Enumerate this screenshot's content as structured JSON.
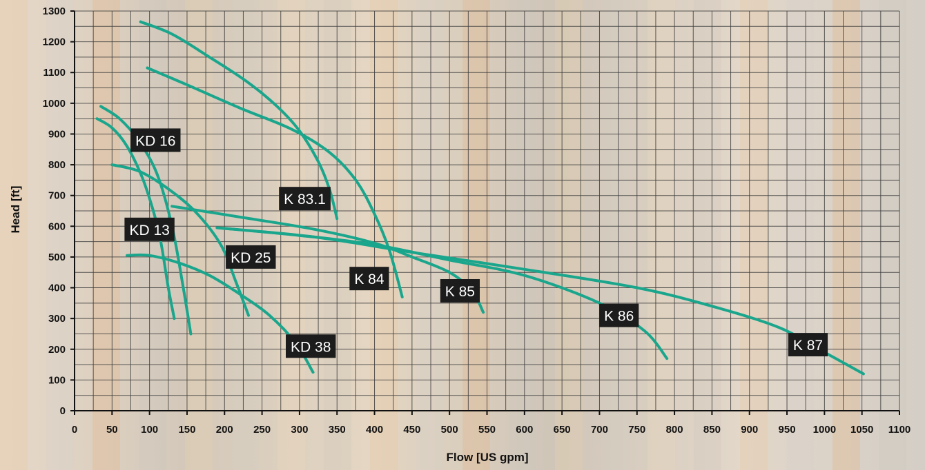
{
  "colors": {
    "curve": "#1aa68c",
    "grid": "#3c3c3c",
    "axis": "#111111",
    "label_bg": "#1c1c1c",
    "label_text": "#ffffff",
    "background": "#d9cfc3"
  },
  "chart_data": {
    "type": "line",
    "title": "",
    "xlabel": "Flow [US gpm]",
    "ylabel": "Head [ft]",
    "xlim": [
      0,
      1100
    ],
    "ylim": [
      0,
      1300
    ],
    "x_ticks": [
      0,
      50,
      100,
      150,
      200,
      250,
      300,
      350,
      400,
      450,
      500,
      550,
      600,
      650,
      700,
      750,
      800,
      850,
      900,
      950,
      1000,
      1050,
      1100
    ],
    "y_ticks": [
      0,
      100,
      200,
      300,
      400,
      500,
      600,
      700,
      800,
      900,
      1000,
      1100,
      1200,
      1300
    ],
    "grid": true,
    "legend": "labels on curves",
    "series": [
      {
        "name": "KD 13",
        "points": [
          [
            30,
            950
          ],
          [
            50,
            920
          ],
          [
            70,
            860
          ],
          [
            90,
            760
          ],
          [
            105,
            650
          ],
          [
            115,
            550
          ],
          [
            125,
            400
          ],
          [
            133,
            300
          ]
        ],
        "label_at": [
          100,
          590
        ]
      },
      {
        "name": "KD 16",
        "points": [
          [
            35,
            990
          ],
          [
            60,
            950
          ],
          [
            85,
            880
          ],
          [
            110,
            770
          ],
          [
            130,
            600
          ],
          [
            145,
            400
          ],
          [
            155,
            250
          ]
        ],
        "label_at": [
          108,
          880
        ]
      },
      {
        "name": "KD 25",
        "points": [
          [
            50,
            800
          ],
          [
            85,
            780
          ],
          [
            120,
            730
          ],
          [
            160,
            650
          ],
          [
            195,
            540
          ],
          [
            215,
            420
          ],
          [
            232,
            310
          ]
        ],
        "label_at": [
          235,
          500
        ]
      },
      {
        "name": "KD 38",
        "points": [
          [
            70,
            505
          ],
          [
            100,
            505
          ],
          [
            140,
            480
          ],
          [
            180,
            440
          ],
          [
            220,
            380
          ],
          [
            260,
            310
          ],
          [
            295,
            220
          ],
          [
            318,
            125
          ]
        ],
        "label_at": [
          315,
          210
        ]
      },
      {
        "name": "K 83.1",
        "points": [
          [
            88,
            1265
          ],
          [
            130,
            1225
          ],
          [
            180,
            1150
          ],
          [
            230,
            1070
          ],
          [
            270,
            990
          ],
          [
            300,
            910
          ],
          [
            325,
            810
          ],
          [
            340,
            720
          ],
          [
            350,
            625
          ]
        ],
        "label_at": [
          307,
          690
        ]
      },
      {
        "name": "K 84",
        "points": [
          [
            97,
            1115
          ],
          [
            150,
            1060
          ],
          [
            220,
            985
          ],
          [
            290,
            915
          ],
          [
            340,
            840
          ],
          [
            375,
            750
          ],
          [
            400,
            640
          ],
          [
            420,
            520
          ],
          [
            437,
            370
          ]
        ],
        "label_at": [
          393,
          430
        ]
      },
      {
        "name": "K 85",
        "points": [
          [
            130,
            665
          ],
          [
            220,
            630
          ],
          [
            320,
            590
          ],
          [
            400,
            545
          ],
          [
            450,
            500
          ],
          [
            500,
            450
          ],
          [
            530,
            390
          ],
          [
            545,
            320
          ]
        ],
        "label_at": [
          514,
          390
        ]
      },
      {
        "name": "K 86",
        "points": [
          [
            190,
            595
          ],
          [
            300,
            570
          ],
          [
            400,
            540
          ],
          [
            500,
            490
          ],
          [
            600,
            440
          ],
          [
            700,
            350
          ],
          [
            760,
            260
          ],
          [
            790,
            170
          ]
        ],
        "label_at": [
          726,
          310
        ]
      },
      {
        "name": "K 87",
        "points": [
          [
            190,
            595
          ],
          [
            320,
            565
          ],
          [
            450,
            515
          ],
          [
            600,
            460
          ],
          [
            750,
            400
          ],
          [
            850,
            340
          ],
          [
            940,
            270
          ],
          [
            1000,
            190
          ],
          [
            1052,
            120
          ]
        ],
        "label_at": [
          978,
          215
        ]
      }
    ]
  }
}
